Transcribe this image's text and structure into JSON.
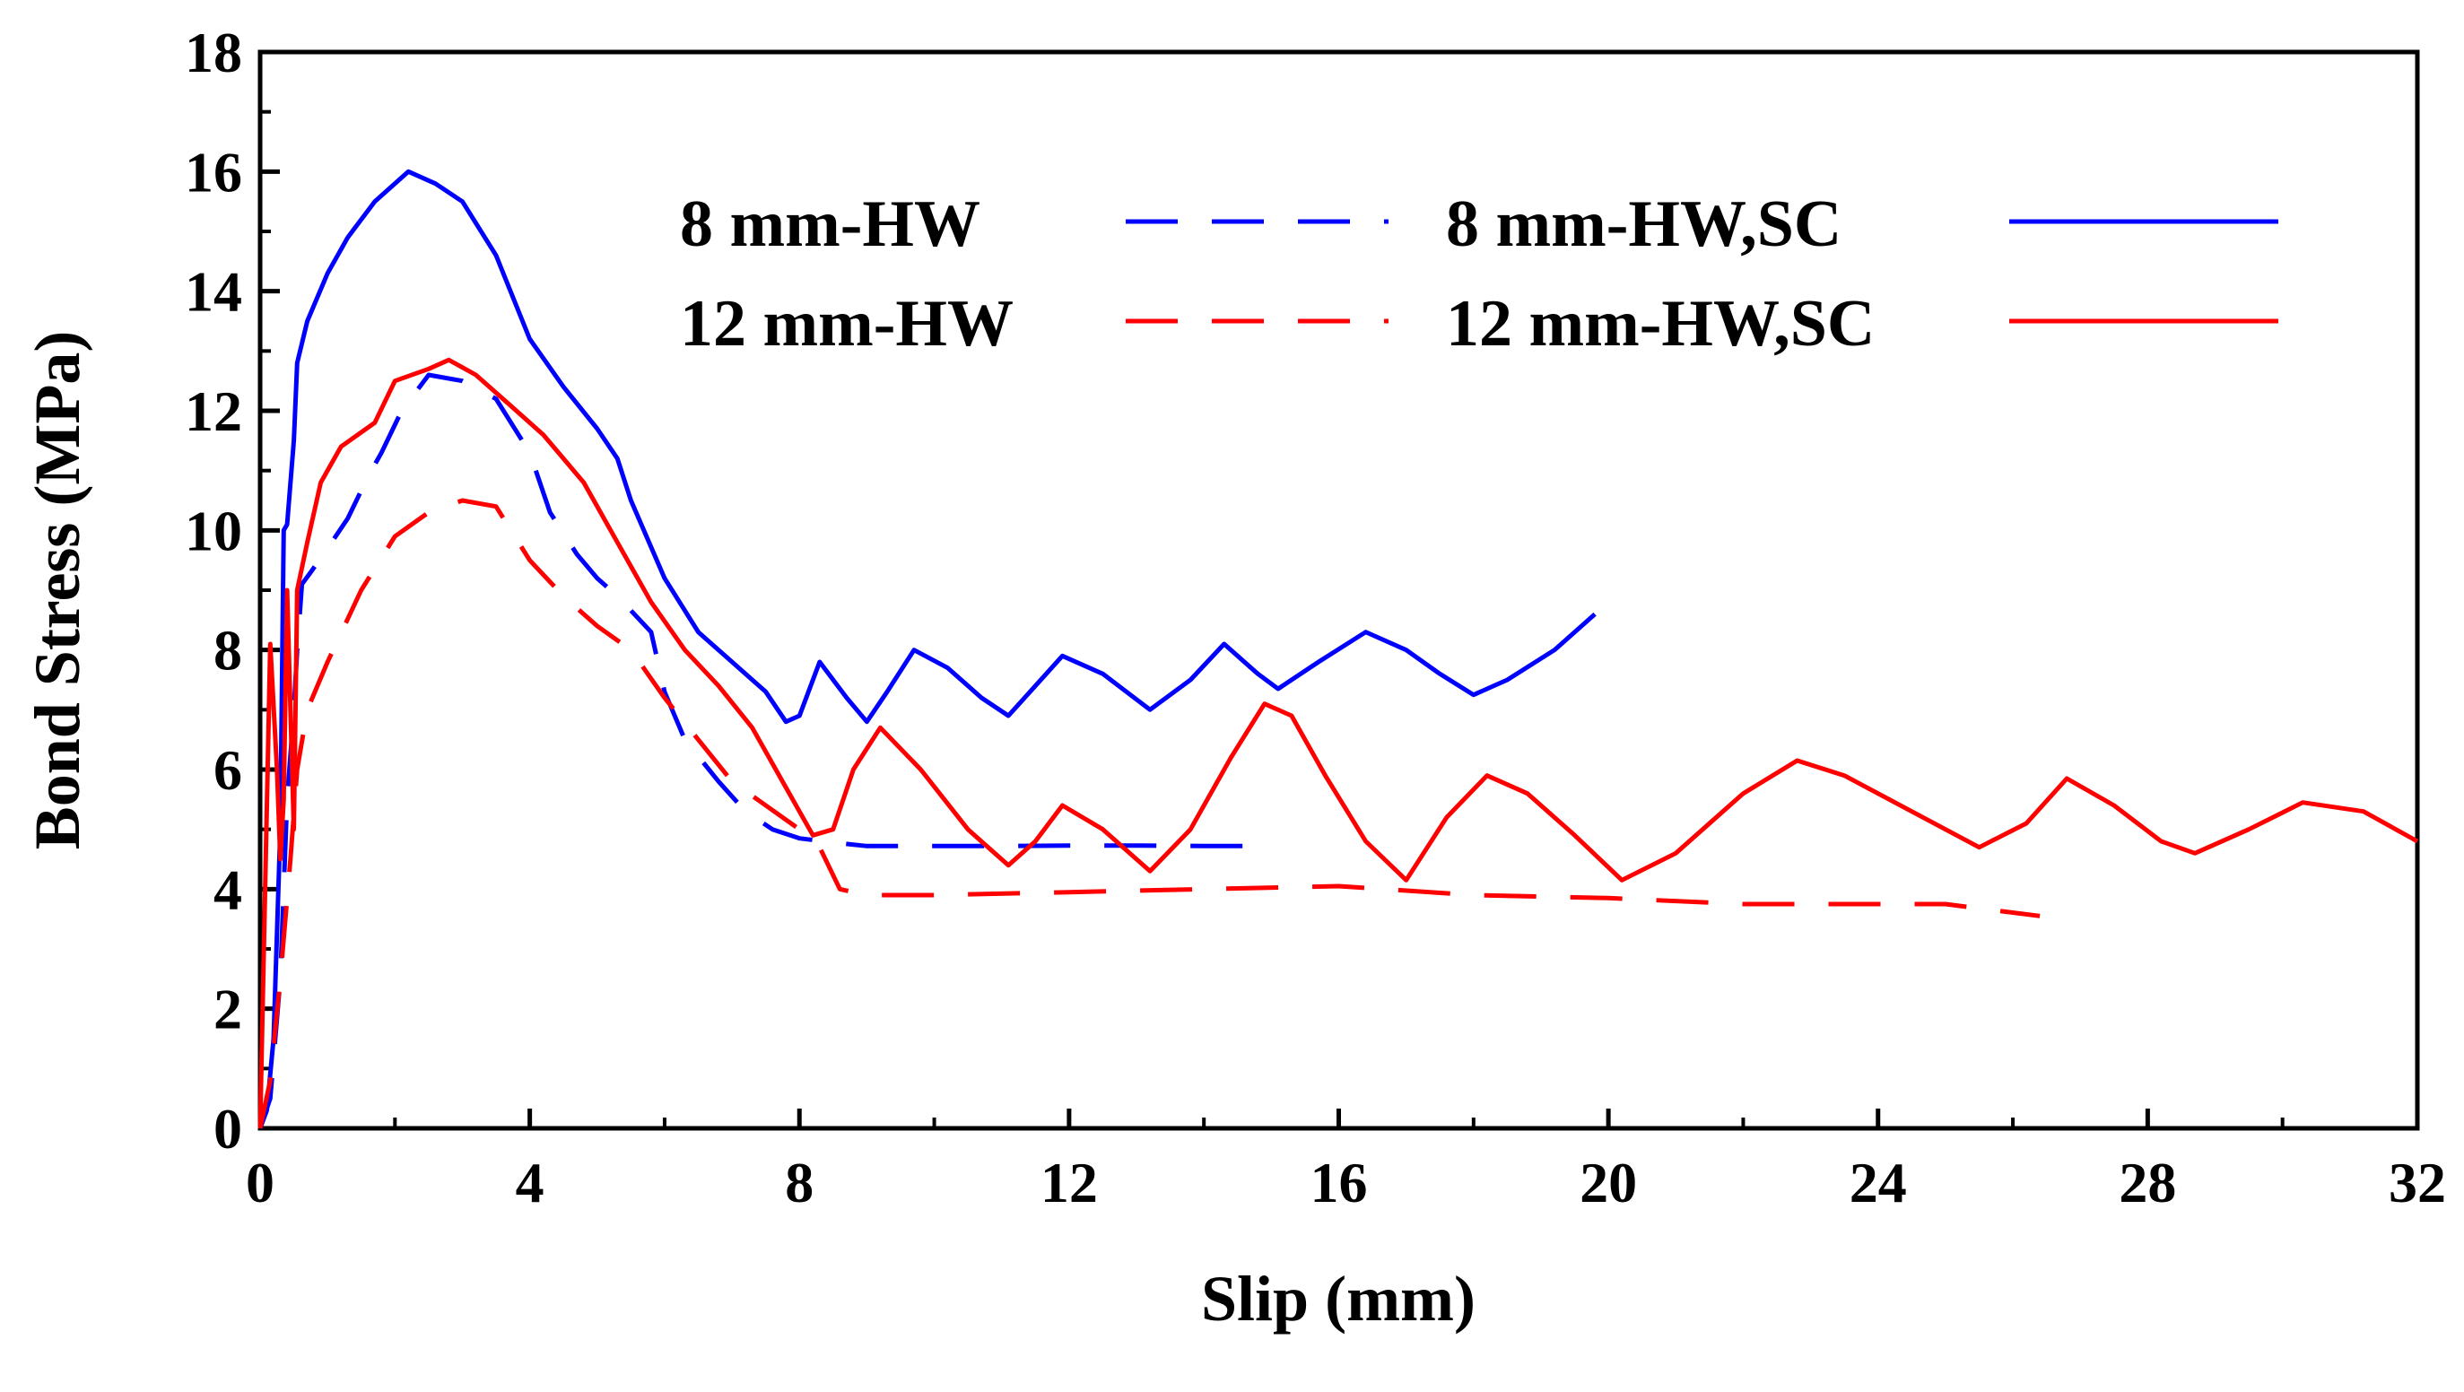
{
  "chart_data": {
    "type": "line",
    "title": "",
    "xlabel": "Slip (mm)",
    "ylabel": "Bond Stress (MPa)",
    "xlim": [
      0,
      32
    ],
    "ylim": [
      0,
      18
    ],
    "xticks": [
      0,
      4,
      8,
      12,
      16,
      20,
      24,
      28,
      32
    ],
    "yticks": [
      0,
      2,
      4,
      6,
      8,
      10,
      12,
      14,
      16,
      18
    ],
    "grid": false,
    "legend_placement": "top-center",
    "series": [
      {
        "name": "8 mm-HW",
        "color": "#0000ff",
        "dash": "dashed",
        "x": [
          0,
          0.15,
          0.3,
          0.4,
          0.5,
          0.55,
          0.62,
          0.75,
          1.0,
          1.3,
          1.6,
          1.8,
          2.1,
          2.5,
          3.0,
          3.5,
          4.0,
          4.3,
          4.7,
          5.0,
          5.3,
          5.8,
          6.0,
          6.3,
          6.8,
          7.2,
          7.6,
          8.0,
          8.5,
          9.0,
          10,
          11,
          12,
          13,
          14,
          14.6
        ],
        "y": [
          0,
          0.5,
          2.5,
          5.5,
          7.0,
          8.0,
          9.1,
          9.3,
          9.7,
          10.2,
          10.9,
          11.3,
          12.0,
          12.6,
          12.5,
          12.2,
          11.3,
          10.3,
          9.6,
          9.2,
          8.9,
          8.3,
          7.3,
          6.5,
          5.8,
          5.3,
          5.0,
          4.85,
          4.78,
          4.72,
          4.72,
          4.72,
          4.73,
          4.73,
          4.72,
          4.72
        ]
      },
      {
        "name": "8 mm-HW,SC",
        "color": "#0000ff",
        "dash": "solid",
        "x": [
          0,
          0.1,
          0.2,
          0.3,
          0.35,
          0.4,
          0.5,
          0.55,
          0.7,
          1.0,
          1.3,
          1.7,
          2.2,
          2.6,
          3.0,
          3.5,
          4.0,
          4.5,
          5.0,
          5.3,
          5.5,
          6.0,
          6.5,
          7.0,
          7.5,
          7.8,
          8.0,
          8.3,
          8.7,
          9.0,
          9.3,
          9.7,
          10.2,
          10.7,
          11.1,
          11.5,
          11.9,
          12.5,
          13.2,
          13.8,
          14.3,
          14.8,
          15.1,
          15.7,
          16.4,
          17.0,
          17.5,
          18.0,
          18.5,
          19.2,
          19.8
        ],
        "y": [
          0,
          0.3,
          1.5,
          5.0,
          10.0,
          10.1,
          11.5,
          12.8,
          13.5,
          14.3,
          14.9,
          15.5,
          16.0,
          15.8,
          15.5,
          14.6,
          13.2,
          12.4,
          11.7,
          11.2,
          10.5,
          9.2,
          8.3,
          7.8,
          7.3,
          6.8,
          6.9,
          7.8,
          7.2,
          6.8,
          7.3,
          8.0,
          7.7,
          7.2,
          6.9,
          7.4,
          7.9,
          7.6,
          7.0,
          7.5,
          8.1,
          7.6,
          7.35,
          7.8,
          8.3,
          8.0,
          7.6,
          7.25,
          7.5,
          8.0,
          8.6
        ]
      },
      {
        "name": "12 mm-HW",
        "color": "#ff0000",
        "dash": "dashed",
        "x": [
          0,
          0.15,
          0.3,
          0.45,
          0.55,
          0.7,
          1.0,
          1.5,
          2.0,
          2.5,
          3.0,
          3.5,
          4.0,
          4.5,
          5.0,
          5.5,
          6.0,
          6.5,
          7.0,
          7.5,
          8.0,
          8.3,
          8.6,
          9.0,
          10,
          12,
          14,
          16,
          18,
          20,
          22,
          24,
          25,
          26.4
        ],
        "y": [
          0,
          0.8,
          2.5,
          4.5,
          6.0,
          7.0,
          7.8,
          9.0,
          9.9,
          10.3,
          10.5,
          10.4,
          9.5,
          8.9,
          8.4,
          8.0,
          7.2,
          6.5,
          5.8,
          5.4,
          5.0,
          4.7,
          4.0,
          3.9,
          3.9,
          3.95,
          4.0,
          4.05,
          3.9,
          3.85,
          3.75,
          3.75,
          3.75,
          3.55
        ]
      },
      {
        "name": "12 mm-HW,SC",
        "color": "#ff0000",
        "dash": "solid",
        "x": [
          0,
          0.15,
          0.25,
          0.3,
          0.35,
          0.4,
          0.45,
          0.5,
          0.55,
          0.7,
          0.9,
          1.2,
          1.7,
          2.0,
          2.5,
          2.8,
          3.2,
          3.7,
          4.2,
          4.8,
          5.3,
          5.8,
          6.3,
          6.8,
          7.3,
          7.8,
          8.2,
          8.5,
          8.8,
          9.2,
          9.8,
          10.5,
          11.1,
          11.5,
          11.9,
          12.5,
          13.2,
          13.8,
          14.4,
          14.9,
          15.3,
          15.8,
          16.4,
          17.0,
          17.6,
          18.2,
          18.8,
          19.5,
          20.2,
          21.0,
          22.0,
          22.8,
          23.5,
          24.5,
          25.5,
          26.2,
          26.8,
          27.5,
          28.2,
          28.7,
          29.5,
          30.3,
          31.2,
          32.0
        ],
        "y": [
          0,
          8.1,
          6.0,
          4.5,
          5.5,
          9.0,
          7.0,
          5.0,
          9.0,
          9.8,
          10.8,
          11.4,
          11.8,
          12.5,
          12.7,
          12.85,
          12.6,
          12.1,
          11.6,
          10.8,
          9.8,
          8.8,
          8.0,
          7.4,
          6.7,
          5.7,
          4.9,
          5.0,
          6.0,
          6.7,
          6.0,
          5.0,
          4.4,
          4.8,
          5.4,
          5.0,
          4.3,
          5.0,
          6.2,
          7.1,
          6.9,
          5.9,
          4.8,
          4.15,
          5.2,
          5.9,
          5.6,
          4.9,
          4.15,
          4.6,
          5.6,
          6.15,
          5.9,
          5.3,
          4.7,
          5.1,
          5.85,
          5.4,
          4.8,
          4.6,
          5.0,
          5.45,
          5.3,
          4.8
        ]
      }
    ]
  }
}
